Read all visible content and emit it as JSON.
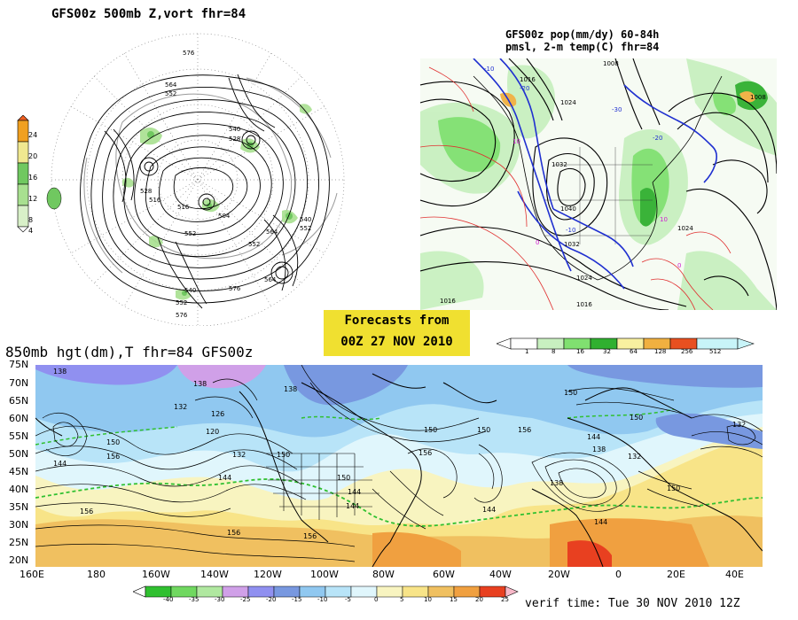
{
  "polar": {
    "title": "GFS00z   500mb Z,vort    fhr=84",
    "colorbar_ticks": [
      "24",
      "20",
      "16",
      "12",
      "8",
      "4"
    ],
    "contour_labels": [
      "576",
      "564",
      "552",
      "540",
      "528",
      "516",
      "552",
      "564",
      "576",
      "540",
      "552",
      "528",
      "516",
      "504",
      "552",
      "564",
      "540",
      "552",
      "576"
    ]
  },
  "us_panel": {
    "title_line1": "GFS00z pop(mm/dy) 60-84h",
    "title_line2": "pmsl, 2-m temp(C)  fhr=84",
    "colorbar_ticks": [
      "1",
      "8",
      "16",
      "32",
      "64",
      "128",
      "256",
      "512"
    ],
    "pressure_labels": [
      "1008",
      "1016",
      "1024",
      "1032",
      "1040",
      "1032",
      "1024",
      "1016",
      "1008",
      "1024",
      "1016"
    ],
    "temp_labels": [
      "-10",
      "-20",
      "-30",
      "10",
      "0",
      "-10",
      "-20",
      "10",
      "0"
    ]
  },
  "forecast_box": {
    "line1": "Forecasts from",
    "line2": "00Z 27 NOV 2010"
  },
  "global": {
    "title": "850mb hgt(dm),T  fhr=84 GFS00z",
    "lat_labels": [
      "75N",
      "70N",
      "65N",
      "60N",
      "55N",
      "50N",
      "45N",
      "40N",
      "35N",
      "30N",
      "25N",
      "20N"
    ],
    "lon_labels": [
      "160E",
      "180",
      "160W",
      "140W",
      "120W",
      "100W",
      "80W",
      "60W",
      "40W",
      "20W",
      "0",
      "20E",
      "40E"
    ],
    "height_labels": [
      "138",
      "138",
      "138",
      "132",
      "126",
      "150",
      "120",
      "132",
      "150",
      "144",
      "156",
      "144",
      "150",
      "156",
      "150",
      "156",
      "144",
      "150",
      "150",
      "144",
      "138",
      "132",
      "150",
      "132",
      "156",
      "144",
      "156",
      "144",
      "156",
      "144",
      "138",
      "150"
    ],
    "colorbar_ticks": [
      "-40",
      "-35",
      "-30",
      "-25",
      "-20",
      "-15",
      "-10",
      "-5",
      "0",
      "5",
      "10",
      "15",
      "20",
      "25"
    ]
  },
  "verif_time": "verif time: Tue 30 NOV 2010 12Z",
  "colors": {
    "forecast_box": "#f0e030",
    "vort_scale": [
      "#ffffff",
      "#d8f0c8",
      "#a8e090",
      "#70c860",
      "#f0e890",
      "#f0a020"
    ],
    "pop_scale": [
      "#ffffff",
      "#c8f0c0",
      "#80e070",
      "#30b030",
      "#f8f0a0",
      "#f0b040",
      "#e85020",
      "#c8f4f8"
    ],
    "temp_scale": [
      "#30c030",
      "#70d860",
      "#b0e8a0",
      "#d0a0e8",
      "#9090f0",
      "#7898e0",
      "#90c8f0",
      "#b8e4f8",
      "#e0f6fc",
      "#f8f4c0",
      "#f8e488",
      "#f0c060",
      "#f0a040",
      "#e84020"
    ]
  }
}
